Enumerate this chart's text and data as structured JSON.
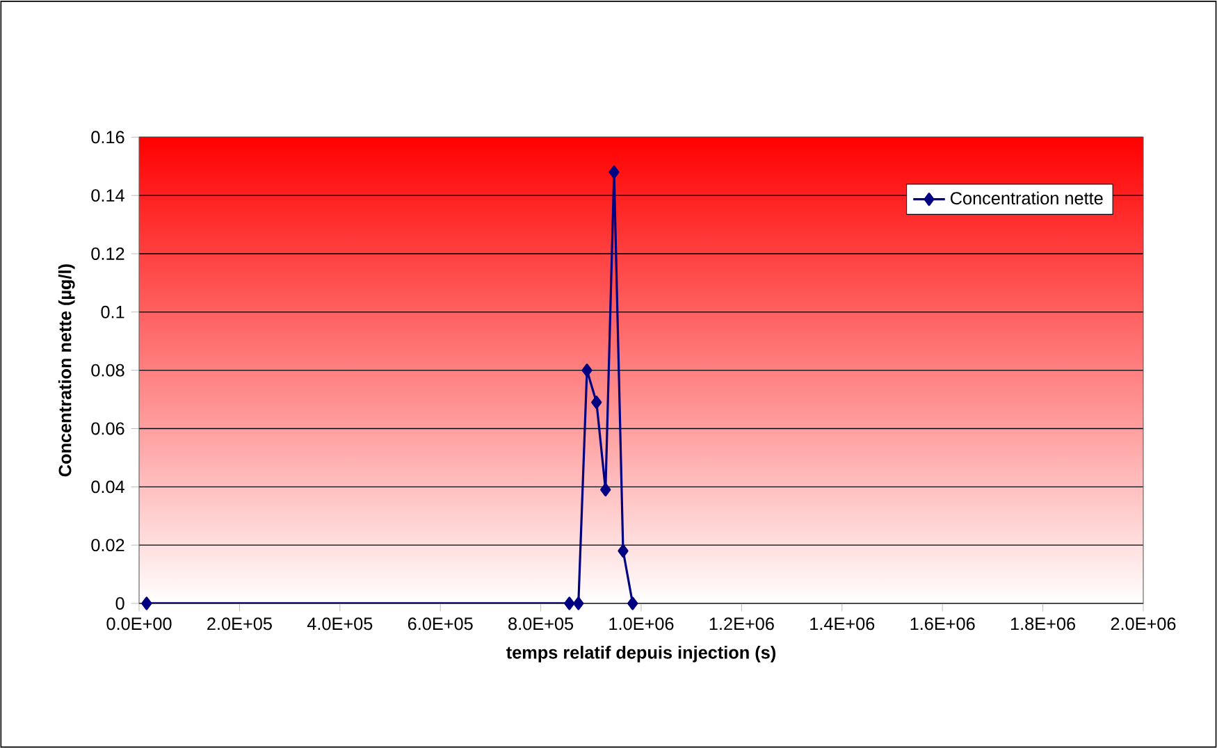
{
  "chart_data": {
    "type": "line",
    "xlabel": "temps relatif depuis injection (s)",
    "ylabel": "Concentration nette (µg/l)",
    "x": [
      15000,
      857000,
      875000,
      892000,
      911000,
      929000,
      946000,
      964000,
      983000
    ],
    "series": [
      {
        "name": "Concentration nette",
        "color": "#000080",
        "values": [
          0,
          0,
          0,
          0.08,
          0.069,
          0.039,
          0.148,
          0.018,
          0
        ]
      }
    ],
    "xlim": [
      0,
      2000000
    ],
    "xticks": [
      {
        "value": 0,
        "label": "0.0E+00"
      },
      {
        "value": 200000,
        "label": "2.0E+05"
      },
      {
        "value": 400000,
        "label": "4.0E+05"
      },
      {
        "value": 600000,
        "label": "6.0E+05"
      },
      {
        "value": 800000,
        "label": "8.0E+05"
      },
      {
        "value": 1000000,
        "label": "1.0E+06"
      },
      {
        "value": 1200000,
        "label": "1.2E+06"
      },
      {
        "value": 1400000,
        "label": "1.4E+06"
      },
      {
        "value": 1600000,
        "label": "1.6E+06"
      },
      {
        "value": 1800000,
        "label": "1.8E+06"
      },
      {
        "value": 2000000,
        "label": "2.0E+06"
      }
    ],
    "ylim": [
      0,
      0.16
    ],
    "yticks": [
      0,
      0.02,
      0.04,
      0.06,
      0.08,
      0.1,
      0.12,
      0.14,
      0.16
    ],
    "grid": "y",
    "legend": "top right",
    "marker": "diamond",
    "line_style": "solid"
  }
}
